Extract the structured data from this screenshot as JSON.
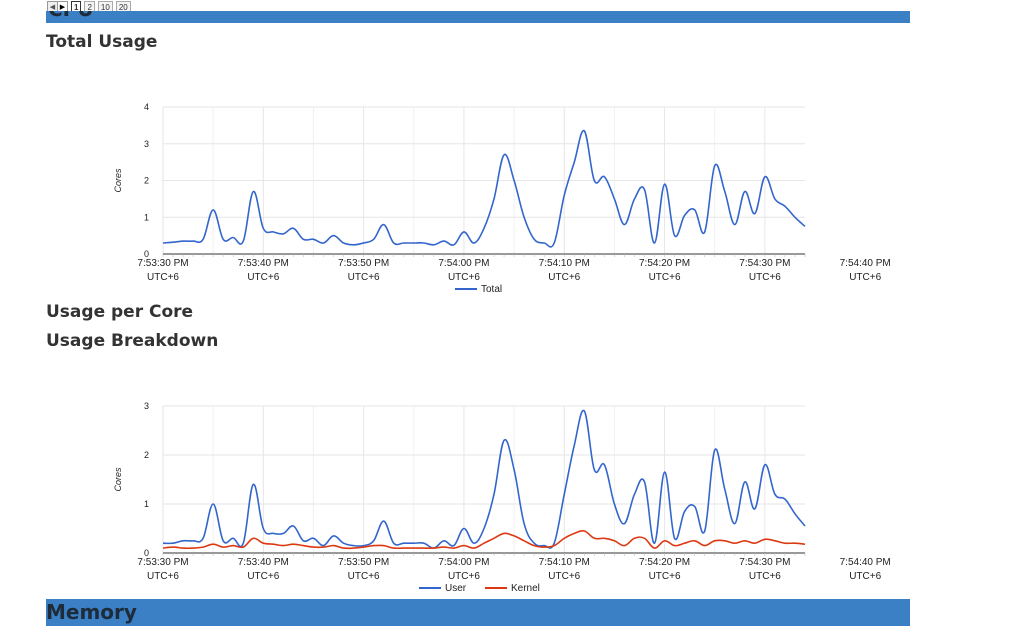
{
  "pager": {
    "pages": [
      "1",
      "2",
      "10",
      "20"
    ],
    "selected": "1"
  },
  "cpu_section": {
    "title": "CPU"
  },
  "total_usage": {
    "title": "Total Usage"
  },
  "usage_per_core": {
    "title": "Usage per Core"
  },
  "usage_breakdown": {
    "title": "Usage Breakdown"
  },
  "memory_section": {
    "title": "Memory"
  },
  "chart_data": [
    {
      "type": "line",
      "title": "Total Usage",
      "xlabel": "",
      "ylabel": "Cores",
      "ylim": [
        0,
        4
      ],
      "yticks": [
        0,
        1,
        2,
        3,
        4
      ],
      "grid": true,
      "legend_position": "bottom",
      "x_tick_labels": [
        [
          "7:53:30 PM",
          "UTC+6"
        ],
        [
          "7:53:40 PM",
          "UTC+6"
        ],
        [
          "7:53:50 PM",
          "UTC+6"
        ],
        [
          "7:54:00 PM",
          "UTC+6"
        ],
        [
          "7:54:10 PM",
          "UTC+6"
        ],
        [
          "7:54:20 PM",
          "UTC+6"
        ],
        [
          "7:54:30 PM",
          "UTC+6"
        ],
        [
          "7:54:40 PM",
          "UTC+6"
        ]
      ],
      "x_start": "7:53:30 PM",
      "x_step_seconds": 1,
      "series": [
        {
          "name": "Total",
          "color": "#3366cc",
          "values": [
            0.3,
            0.32,
            0.35,
            0.35,
            0.4,
            1.2,
            0.4,
            0.45,
            0.35,
            1.7,
            0.7,
            0.6,
            0.55,
            0.7,
            0.4,
            0.4,
            0.3,
            0.5,
            0.3,
            0.25,
            0.3,
            0.4,
            0.8,
            0.3,
            0.3,
            0.3,
            0.3,
            0.25,
            0.35,
            0.25,
            0.6,
            0.3,
            0.7,
            1.5,
            2.7,
            2.0,
            1.0,
            0.4,
            0.3,
            0.3,
            1.6,
            2.5,
            3.35,
            2.0,
            2.1,
            1.5,
            0.8,
            1.5,
            1.75,
            0.3,
            1.9,
            0.5,
            1.05,
            1.2,
            0.6,
            2.4,
            1.7,
            0.8,
            1.7,
            1.1,
            2.1,
            1.5,
            1.3,
            1.0,
            0.75
          ]
        }
      ]
    },
    {
      "type": "line",
      "title": "Usage Breakdown",
      "xlabel": "",
      "ylabel": "Cores",
      "ylim": [
        0,
        3
      ],
      "yticks": [
        0,
        1,
        2,
        3
      ],
      "grid": true,
      "legend_position": "bottom",
      "x_tick_labels": [
        [
          "7:53:30 PM",
          "UTC+6"
        ],
        [
          "7:53:40 PM",
          "UTC+6"
        ],
        [
          "7:53:50 PM",
          "UTC+6"
        ],
        [
          "7:54:00 PM",
          "UTC+6"
        ],
        [
          "7:54:10 PM",
          "UTC+6"
        ],
        [
          "7:54:20 PM",
          "UTC+6"
        ],
        [
          "7:54:30 PM",
          "UTC+6"
        ],
        [
          "7:54:40 PM",
          "UTC+6"
        ]
      ],
      "x_start": "7:53:30 PM",
      "x_step_seconds": 1,
      "series": [
        {
          "name": "User",
          "color": "#3366cc",
          "values": [
            0.2,
            0.2,
            0.25,
            0.25,
            0.3,
            1.0,
            0.25,
            0.3,
            0.2,
            1.4,
            0.5,
            0.4,
            0.4,
            0.55,
            0.25,
            0.3,
            0.15,
            0.35,
            0.2,
            0.15,
            0.15,
            0.25,
            0.65,
            0.2,
            0.2,
            0.2,
            0.2,
            0.1,
            0.25,
            0.15,
            0.5,
            0.2,
            0.5,
            1.2,
            2.3,
            1.7,
            0.6,
            0.2,
            0.15,
            0.2,
            1.2,
            2.2,
            2.9,
            1.7,
            1.8,
            1.0,
            0.6,
            1.2,
            1.45,
            0.2,
            1.65,
            0.3,
            0.85,
            0.95,
            0.45,
            2.1,
            1.3,
            0.6,
            1.45,
            0.9,
            1.8,
            1.2,
            1.1,
            0.8,
            0.55
          ]
        },
        {
          "name": "Kernel",
          "color": "#dc3912",
          "values": [
            0.1,
            0.12,
            0.1,
            0.1,
            0.12,
            0.18,
            0.12,
            0.15,
            0.12,
            0.3,
            0.2,
            0.18,
            0.15,
            0.18,
            0.15,
            0.12,
            0.12,
            0.15,
            0.1,
            0.1,
            0.12,
            0.15,
            0.15,
            0.1,
            0.1,
            0.1,
            0.1,
            0.1,
            0.12,
            0.1,
            0.15,
            0.1,
            0.2,
            0.3,
            0.4,
            0.35,
            0.25,
            0.15,
            0.12,
            0.15,
            0.3,
            0.4,
            0.45,
            0.3,
            0.3,
            0.25,
            0.15,
            0.3,
            0.3,
            0.1,
            0.25,
            0.15,
            0.2,
            0.25,
            0.15,
            0.25,
            0.25,
            0.2,
            0.25,
            0.2,
            0.28,
            0.25,
            0.2,
            0.2,
            0.18
          ]
        }
      ]
    }
  ]
}
